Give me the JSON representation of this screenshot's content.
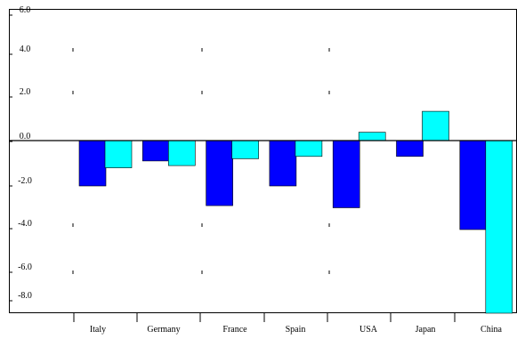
{
  "chart_data": {
    "type": "bar",
    "categories": [
      "Italy",
      "Germany",
      "France",
      "Spain",
      "USA",
      "Japan",
      "China"
    ],
    "series": [
      {
        "color": "#0000ff",
        "values": [
          -2.0,
          -0.9,
          -2.9,
          -2.0,
          -3.0,
          -0.7,
          -4.0
        ]
      },
      {
        "color": "#00ffff",
        "values": [
          -1.2,
          -1.1,
          -0.8,
          -0.7,
          0.4,
          1.4,
          -8.8
        ]
      }
    ],
    "yticks": [
      {
        "value": 6.0,
        "label": "6.0"
      },
      {
        "value": 4.0,
        "label": "4.0"
      },
      {
        "value": 2.0,
        "label": "2.0"
      },
      {
        "value": 0.0,
        "label": "0.0"
      },
      {
        "value": -2.0,
        "label": "-2.0"
      },
      {
        "value": -4.0,
        "label": "-4.0"
      },
      {
        "value": -6.0,
        "label": "-6.0"
      },
      {
        "value": -8.0,
        "label": "-8.0"
      }
    ],
    "ylim": [
      -8.8,
      6.0
    ],
    "title": "",
    "xlabel": "",
    "ylabel": "",
    "grid": false
  }
}
